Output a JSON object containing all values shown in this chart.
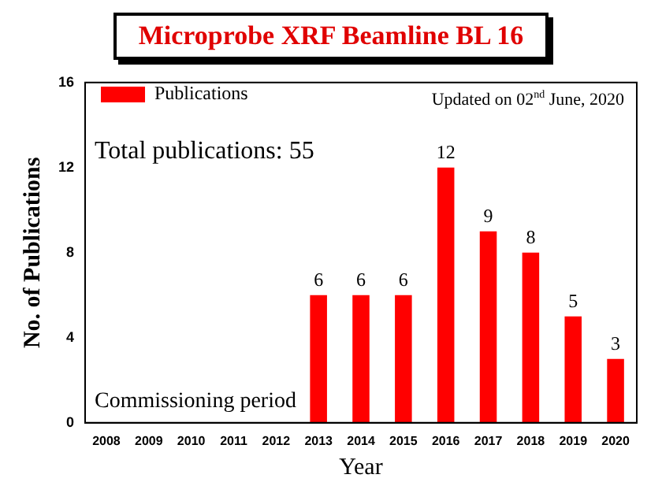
{
  "chart_data": {
    "type": "bar",
    "title": "Microprobe XRF Beamline BL 16",
    "xlabel": "Year",
    "ylabel": "No. of Publications",
    "categories": [
      "2008",
      "2009",
      "2010",
      "2011",
      "2012",
      "2013",
      "2014",
      "2015",
      "2016",
      "2017",
      "2018",
      "2019",
      "2020"
    ],
    "series": [
      {
        "name": "Publications",
        "color": "#ff0000",
        "values": [
          0,
          0,
          0,
          0,
          0,
          6,
          6,
          6,
          12,
          9,
          8,
          5,
          3
        ],
        "value_labels": [
          null,
          null,
          null,
          null,
          null,
          "6",
          "6",
          "6",
          "12",
          "9",
          "8",
          "5",
          "3"
        ]
      }
    ],
    "ylim": [
      0,
      16
    ],
    "yticks": [
      0,
      4,
      8,
      12,
      16
    ],
    "grid": false,
    "legend": "top left",
    "annotations": [
      "Updated on 02$^{nd}$ June, 2020",
      "Total publications: 55",
      "Commissioning period"
    ]
  }
}
